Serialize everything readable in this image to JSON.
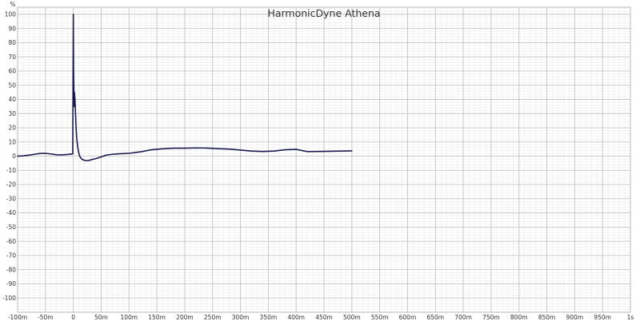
{
  "chart_data": {
    "type": "line",
    "title": "HarmonicDyne Athena",
    "ylabel": "%",
    "xlabel": "",
    "xlim": [
      -0.1,
      1.0
    ],
    "ylim": [
      -110,
      105
    ],
    "grid": true,
    "legend": "none",
    "x_ticks": [
      {
        "v": -0.1,
        "label": "-100m"
      },
      {
        "v": -0.05,
        "label": "-50m"
      },
      {
        "v": 0.0,
        "label": "0"
      },
      {
        "v": 0.05,
        "label": "50m"
      },
      {
        "v": 0.1,
        "label": "100m"
      },
      {
        "v": 0.15,
        "label": "150m"
      },
      {
        "v": 0.2,
        "label": "200m"
      },
      {
        "v": 0.25,
        "label": "250m"
      },
      {
        "v": 0.3,
        "label": "300m"
      },
      {
        "v": 0.35,
        "label": "350m"
      },
      {
        "v": 0.4,
        "label": "400m"
      },
      {
        "v": 0.45,
        "label": "450m"
      },
      {
        "v": 0.5,
        "label": "500m"
      },
      {
        "v": 0.55,
        "label": "550m"
      },
      {
        "v": 0.6,
        "label": "600m"
      },
      {
        "v": 0.65,
        "label": "650m"
      },
      {
        "v": 0.7,
        "label": "700m"
      },
      {
        "v": 0.75,
        "label": "750m"
      },
      {
        "v": 0.8,
        "label": "800m"
      },
      {
        "v": 0.85,
        "label": "850m"
      },
      {
        "v": 0.9,
        "label": "900m"
      },
      {
        "v": 0.95,
        "label": "950m"
      },
      {
        "v": 1.0,
        "label": "1s"
      }
    ],
    "y_ticks": [
      {
        "v": 100,
        "label": "100"
      },
      {
        "v": 90,
        "label": "90"
      },
      {
        "v": 80,
        "label": "80"
      },
      {
        "v": 70,
        "label": "70"
      },
      {
        "v": 60,
        "label": "60"
      },
      {
        "v": 50,
        "label": "50"
      },
      {
        "v": 40,
        "label": "40"
      },
      {
        "v": 30,
        "label": "30"
      },
      {
        "v": 20,
        "label": "20"
      },
      {
        "v": 10,
        "label": "10"
      },
      {
        "v": 0,
        "label": "0"
      },
      {
        "v": -10,
        "label": "-10"
      },
      {
        "v": -20,
        "label": "-20"
      },
      {
        "v": -30,
        "label": "-30"
      },
      {
        "v": -40,
        "label": "-40"
      },
      {
        "v": -50,
        "label": "-50"
      },
      {
        "v": -60,
        "label": "-60"
      },
      {
        "v": -70,
        "label": "-70"
      },
      {
        "v": -80,
        "label": "-80"
      },
      {
        "v": -90,
        "label": "-90"
      },
      {
        "v": -100,
        "label": "-100"
      }
    ],
    "series": [
      {
        "color": "#1a1a4e",
        "x": [
          -0.1,
          -0.09,
          -0.08,
          -0.07,
          -0.06,
          -0.05,
          -0.04,
          -0.03,
          -0.02,
          -0.01,
          -0.001,
          0.0,
          0.0005,
          0.001,
          0.0015,
          0.002,
          0.003,
          0.004,
          0.005,
          0.006,
          0.008,
          0.01,
          0.012,
          0.015,
          0.02,
          0.025,
          0.03,
          0.035,
          0.04,
          0.05,
          0.06,
          0.07,
          0.08,
          0.1,
          0.12,
          0.14,
          0.16,
          0.18,
          0.2,
          0.22,
          0.24,
          0.26,
          0.28,
          0.3,
          0.32,
          0.34,
          0.36,
          0.38,
          0.4,
          0.42,
          0.45,
          0.48,
          0.5
        ],
        "y": [
          0.0,
          0.2,
          0.7,
          1.3,
          1.9,
          2.0,
          1.5,
          1.0,
          0.9,
          1.2,
          1.6,
          100.0,
          60.0,
          47.0,
          35.0,
          45.0,
          40.0,
          30.0,
          20.0,
          13.0,
          6.0,
          2.0,
          -0.5,
          -2.0,
          -3.0,
          -3.2,
          -2.8,
          -2.2,
          -1.8,
          -0.5,
          0.8,
          1.3,
          1.6,
          2.0,
          3.0,
          4.5,
          5.2,
          5.6,
          5.6,
          5.8,
          5.7,
          5.3,
          5.0,
          4.3,
          3.6,
          3.3,
          3.6,
          4.5,
          4.8,
          3.2,
          3.4,
          3.6,
          3.7
        ]
      }
    ]
  }
}
